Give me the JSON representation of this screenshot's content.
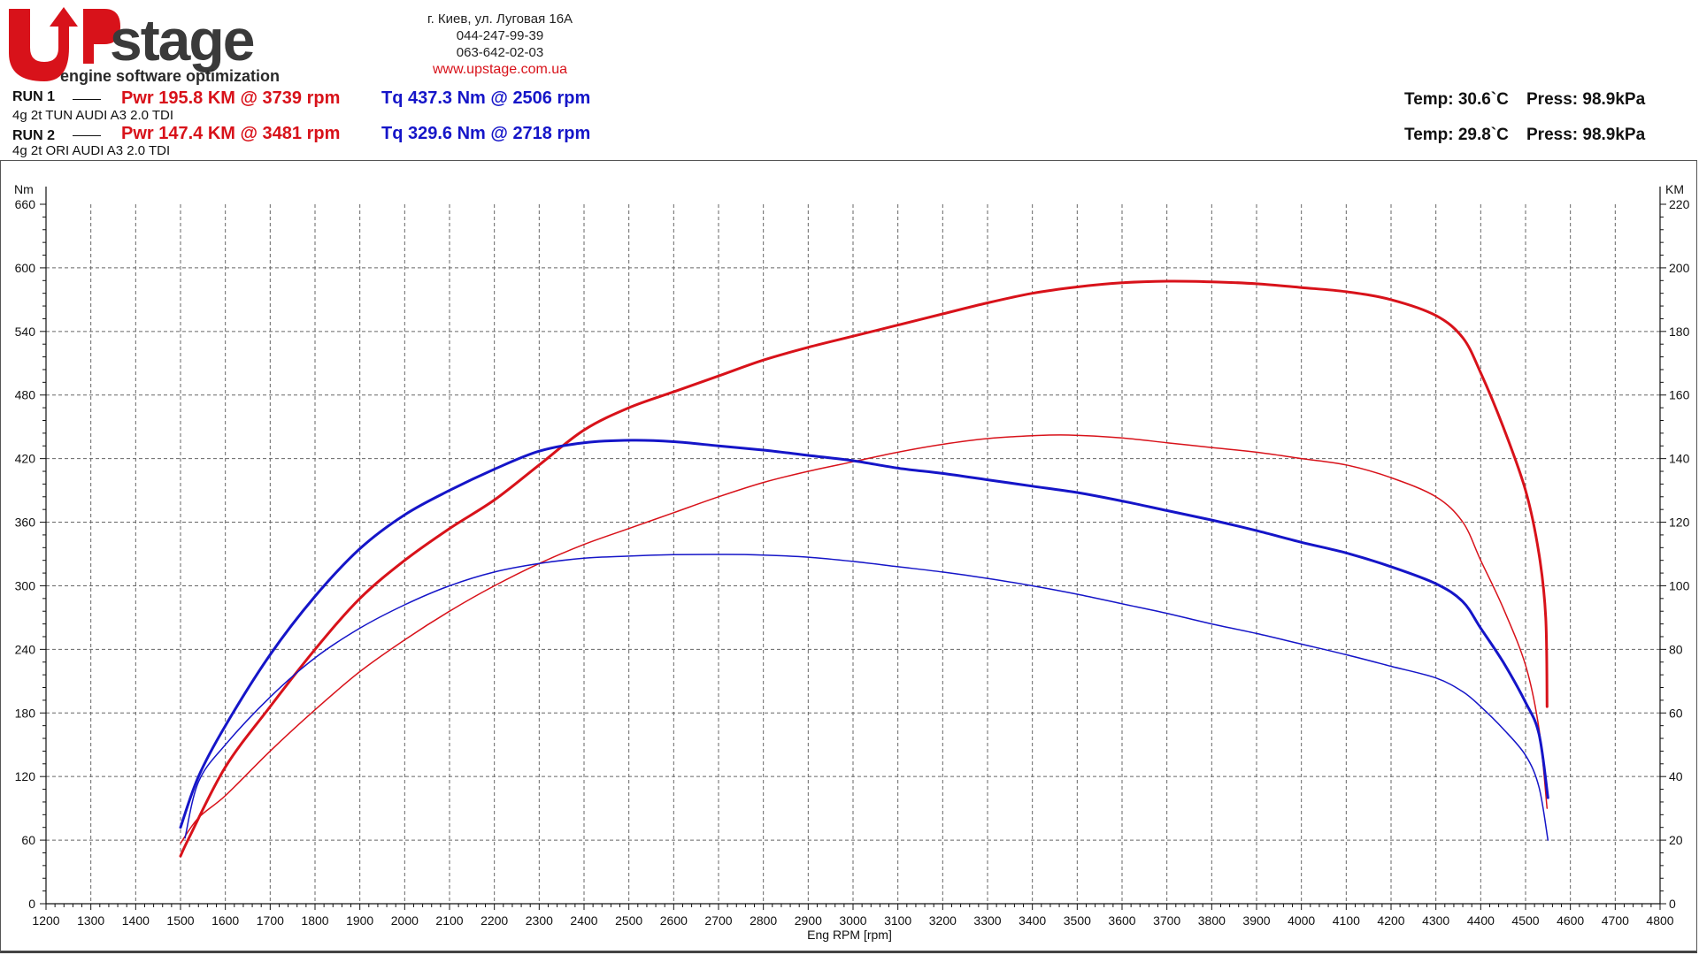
{
  "brand": {
    "logo_text": "UPstage",
    "tagline": "engine software optimization"
  },
  "contact": {
    "address": "г. Киев, ул. Луговая 16А",
    "phone1": "044-247-99-39",
    "phone2": "063-642-02-03",
    "website": "www.upstage.com.ua"
  },
  "runs": [
    {
      "label": "RUN 1",
      "description": "4g 2t  TUN AUDI  A3 2.0 TDI",
      "power_text": "Pwr  195.8 KM @ 3739 rpm",
      "torque_text": "Tq 437.3 Nm @ 2506 rpm",
      "temp_text": "Temp: 30.6`C",
      "press_text": "Press: 98.9kPa"
    },
    {
      "label": "RUN 2",
      "description": "4g 2t  ORI AUDI A3 2.0 TDI",
      "power_text": "Pwr  147.4 KM @ 3481 rpm",
      "torque_text": "Tq 329.6 Nm @ 2718 rpm",
      "temp_text": "Temp: 29.8`C",
      "press_text": "Press: 98.9kPa"
    }
  ],
  "colors": {
    "power": "#d8121a",
    "torque": "#1515c8",
    "grid": "#666666"
  },
  "chart_data": {
    "type": "line",
    "xlabel": "Eng RPM [rpm]",
    "ylabel_left": "Nm",
    "ylabel_right": "KM",
    "xlim": [
      1200,
      4800
    ],
    "xticks": [
      1200,
      1300,
      1400,
      1500,
      1600,
      1700,
      1800,
      1900,
      2000,
      2100,
      2200,
      2300,
      2400,
      2500,
      2600,
      2700,
      2800,
      2900,
      3000,
      3100,
      3200,
      3300,
      3400,
      3500,
      3600,
      3700,
      3800,
      3900,
      4000,
      4100,
      4200,
      4300,
      4400,
      4500,
      4600,
      4700,
      4800
    ],
    "ylim_left": [
      0,
      660
    ],
    "yticks_left": [
      0,
      60,
      120,
      180,
      240,
      300,
      360,
      420,
      480,
      540,
      600,
      660
    ],
    "ylim_right": [
      0,
      220
    ],
    "yticks_right": [
      0,
      20,
      40,
      60,
      80,
      100,
      120,
      140,
      160,
      180,
      200,
      220
    ],
    "grid": true,
    "series": [
      {
        "name": "RUN 1 Pwr",
        "axis": "right",
        "color": "#d8121a",
        "width": 3,
        "points": [
          [
            1500,
            15
          ],
          [
            1520,
            21
          ],
          [
            1600,
            43
          ],
          [
            1700,
            62
          ],
          [
            1800,
            80
          ],
          [
            1900,
            96
          ],
          [
            2000,
            108
          ],
          [
            2100,
            118
          ],
          [
            2200,
            127
          ],
          [
            2300,
            138
          ],
          [
            2400,
            149
          ],
          [
            2500,
            156
          ],
          [
            2600,
            161
          ],
          [
            2700,
            166
          ],
          [
            2800,
            171
          ],
          [
            2900,
            175
          ],
          [
            3000,
            178.5
          ],
          [
            3100,
            182
          ],
          [
            3200,
            185.5
          ],
          [
            3300,
            189
          ],
          [
            3400,
            192
          ],
          [
            3500,
            194
          ],
          [
            3600,
            195.3
          ],
          [
            3700,
            195.8
          ],
          [
            3800,
            195.6
          ],
          [
            3900,
            195
          ],
          [
            4000,
            193.8
          ],
          [
            4100,
            192.5
          ],
          [
            4200,
            190
          ],
          [
            4300,
            185
          ],
          [
            4360,
            178
          ],
          [
            4400,
            167
          ],
          [
            4450,
            150
          ],
          [
            4500,
            130
          ],
          [
            4530,
            110
          ],
          [
            4545,
            90
          ],
          [
            4548,
            62
          ]
        ]
      },
      {
        "name": "RUN 2 Pwr",
        "axis": "right",
        "color": "#d8121a",
        "width": 1.5,
        "points": [
          [
            1500,
            19
          ],
          [
            1540,
            27
          ],
          [
            1600,
            34
          ],
          [
            1700,
            48
          ],
          [
            1800,
            61
          ],
          [
            1900,
            73
          ],
          [
            2000,
            83
          ],
          [
            2100,
            92
          ],
          [
            2200,
            100
          ],
          [
            2300,
            107
          ],
          [
            2400,
            113
          ],
          [
            2500,
            118
          ],
          [
            2600,
            123
          ],
          [
            2700,
            128
          ],
          [
            2800,
            132.5
          ],
          [
            2900,
            136
          ],
          [
            3000,
            139
          ],
          [
            3100,
            142
          ],
          [
            3200,
            144.5
          ],
          [
            3300,
            146.3
          ],
          [
            3400,
            147.2
          ],
          [
            3481,
            147.4
          ],
          [
            3600,
            146.5
          ],
          [
            3700,
            145
          ],
          [
            3800,
            143.5
          ],
          [
            3900,
            142
          ],
          [
            4000,
            140
          ],
          [
            4100,
            138
          ],
          [
            4200,
            134
          ],
          [
            4300,
            128
          ],
          [
            4360,
            120
          ],
          [
            4400,
            108
          ],
          [
            4450,
            93
          ],
          [
            4500,
            75
          ],
          [
            4530,
            55
          ],
          [
            4548,
            30
          ]
        ]
      },
      {
        "name": "RUN 1 Tq",
        "axis": "left",
        "color": "#1515c8",
        "width": 3,
        "points": [
          [
            1500,
            72
          ],
          [
            1540,
            120
          ],
          [
            1600,
            168
          ],
          [
            1700,
            235
          ],
          [
            1800,
            290
          ],
          [
            1900,
            335
          ],
          [
            2000,
            367
          ],
          [
            2100,
            390
          ],
          [
            2200,
            410
          ],
          [
            2300,
            427
          ],
          [
            2400,
            435
          ],
          [
            2506,
            437.3
          ],
          [
            2600,
            436
          ],
          [
            2700,
            432
          ],
          [
            2800,
            428
          ],
          [
            2900,
            423
          ],
          [
            3000,
            418
          ],
          [
            3100,
            411
          ],
          [
            3200,
            406
          ],
          [
            3300,
            400
          ],
          [
            3400,
            394
          ],
          [
            3500,
            388
          ],
          [
            3600,
            380
          ],
          [
            3700,
            371
          ],
          [
            3800,
            362
          ],
          [
            3900,
            352
          ],
          [
            4000,
            341
          ],
          [
            4100,
            331
          ],
          [
            4200,
            318
          ],
          [
            4300,
            302
          ],
          [
            4360,
            285
          ],
          [
            4400,
            260
          ],
          [
            4450,
            228
          ],
          [
            4500,
            190
          ],
          [
            4530,
            160
          ],
          [
            4550,
            100
          ]
        ]
      },
      {
        "name": "RUN 2 Tq",
        "axis": "left",
        "color": "#1515c8",
        "width": 1.5,
        "points": [
          [
            1510,
            62
          ],
          [
            1540,
            115
          ],
          [
            1600,
            150
          ],
          [
            1700,
            195
          ],
          [
            1800,
            232
          ],
          [
            1900,
            260
          ],
          [
            2000,
            282
          ],
          [
            2100,
            300
          ],
          [
            2200,
            313
          ],
          [
            2300,
            321
          ],
          [
            2400,
            326
          ],
          [
            2500,
            328
          ],
          [
            2600,
            329.3
          ],
          [
            2718,
            329.6
          ],
          [
            2800,
            329
          ],
          [
            2900,
            327
          ],
          [
            3000,
            323
          ],
          [
            3100,
            318
          ],
          [
            3200,
            313
          ],
          [
            3300,
            307
          ],
          [
            3400,
            300
          ],
          [
            3500,
            292
          ],
          [
            3600,
            283
          ],
          [
            3700,
            274
          ],
          [
            3800,
            264
          ],
          [
            3900,
            255
          ],
          [
            4000,
            245
          ],
          [
            4100,
            235
          ],
          [
            4200,
            224
          ],
          [
            4300,
            213
          ],
          [
            4360,
            200
          ],
          [
            4400,
            186
          ],
          [
            4450,
            165
          ],
          [
            4500,
            140
          ],
          [
            4530,
            110
          ],
          [
            4550,
            60
          ]
        ]
      }
    ]
  }
}
